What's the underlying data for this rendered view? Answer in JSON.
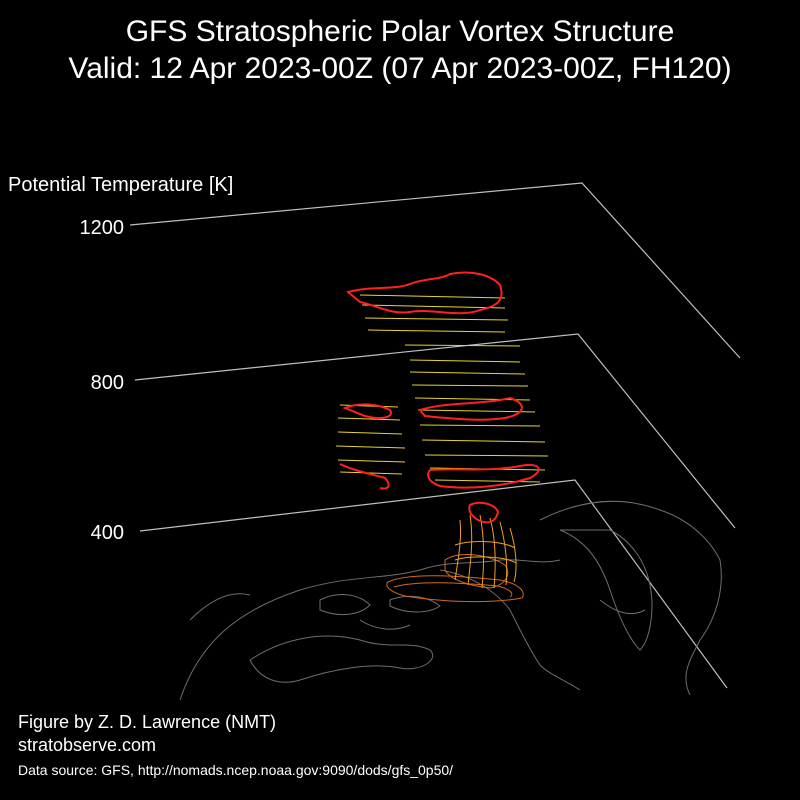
{
  "title_line1": "GFS Stratospheric Polar Vortex Structure",
  "title_line2": "Valid: 12 Apr 2023-00Z  (07 Apr 2023-00Z, FH120)",
  "credits": {
    "figure_by": "Figure by Z. D. Lawrence (NMT)",
    "site": "stratobserve.com",
    "data_source": "Data source: GFS, http://nomads.ncep.noaa.gov:9090/dods/gfs_0p50/"
  },
  "colors": {
    "background": "#000000",
    "axis": "#bfbfbf",
    "coastline": "#6e6e6e",
    "edge_outline": "#ff2020",
    "upper_layers": "#e8d52a",
    "middle_layers": "#f0a020",
    "lower_layers": "#d2691e"
  },
  "chart_data": {
    "type": "3d-isentropic-stack",
    "zlabel": "Potential Temperature [K]",
    "zticks": [
      "400",
      "800",
      "1200"
    ],
    "zlim": [
      400,
      1200
    ],
    "grid": true,
    "vortex_layers": [
      {
        "theta_min": 400,
        "theta_max": 500,
        "color": "lower_layers"
      },
      {
        "theta_min": 500,
        "theta_max": 600,
        "color": "middle_layers"
      },
      {
        "theta_min": 600,
        "theta_max": 1100,
        "color": "upper_layers"
      }
    ]
  }
}
